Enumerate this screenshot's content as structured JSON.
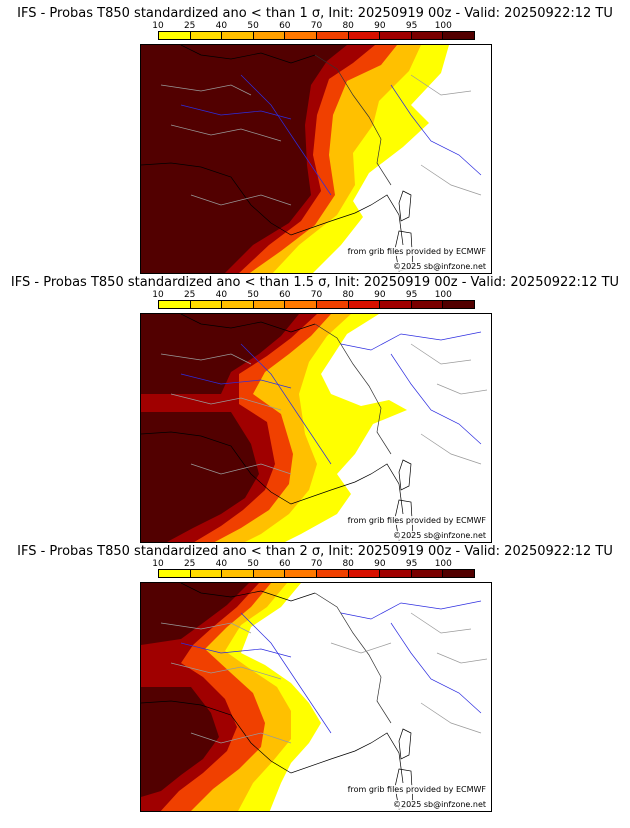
{
  "colorbar": {
    "levels": [
      "10",
      "25",
      "40",
      "50",
      "60",
      "70",
      "80",
      "90",
      "95",
      "100"
    ],
    "colors": [
      "#ffff00",
      "#ffdc00",
      "#ffc000",
      "#ffa000",
      "#ff7800",
      "#f04000",
      "#d81000",
      "#a00000",
      "#7a0000",
      "#520000"
    ]
  },
  "credits": {
    "provider": "from grib files provided by ECMWF",
    "copyright": "©2025 sb@infzone.net"
  },
  "panels": [
    {
      "title": "IFS - Probas T850  standardized ano < than 1 σ, Init: 20250919 00z - Valid: 20250922:12 TU",
      "threshold_sigma": 1
    },
    {
      "title": "IFS - Probas T850  standardized ano < than 1.5 σ, Init: 20250919 00z - Valid: 20250922:12 TU",
      "threshold_sigma": 1.5
    },
    {
      "title": "IFS - Probas T850  standardized ano < than 2 σ, Init: 20250919 00z - Valid: 20250922:12 TU",
      "threshold_sigma": 2
    }
  ]
}
